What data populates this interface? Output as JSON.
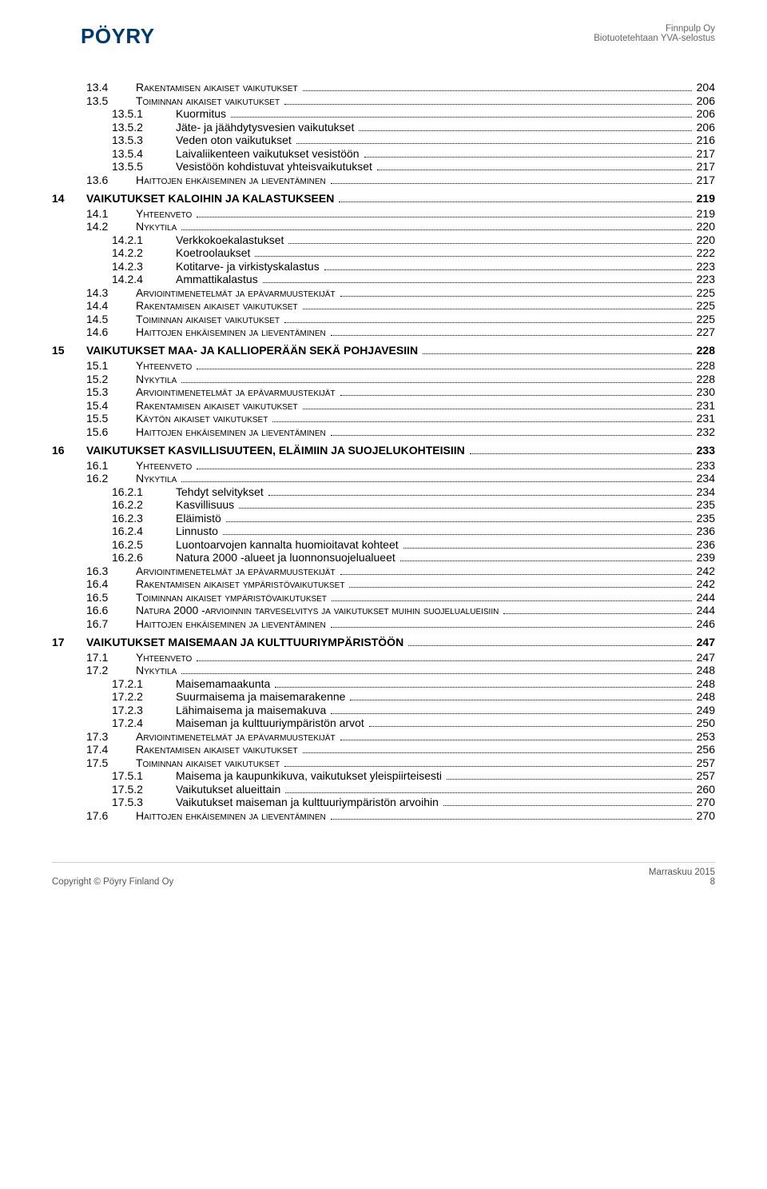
{
  "header": {
    "logo_text": "PÖYRY",
    "logo_colors": {
      "outer": "#e26b1a",
      "inner": "#0b5fa5"
    },
    "client": "Finnpulp Oy",
    "subtitle": "Biotuotetehtaan YVA-selostus"
  },
  "footer": {
    "copyright": "Copyright © Pöyry Finland Oy",
    "date": "Marraskuu 2015",
    "page": "8"
  },
  "entries": [
    {
      "lvl": 2,
      "num": "13.4",
      "txt": "Rakentamisen aikaiset vaikutukset",
      "pg": "204"
    },
    {
      "lvl": 2,
      "num": "13.5",
      "txt": "Toiminnan aikaiset vaikutukset",
      "pg": "206"
    },
    {
      "lvl": 3,
      "num": "13.5.1",
      "txt": "Kuormitus",
      "pg": "206"
    },
    {
      "lvl": 3,
      "num": "13.5.2",
      "txt": "Jäte- ja jäähdytysvesien vaikutukset",
      "pg": "206"
    },
    {
      "lvl": 3,
      "num": "13.5.3",
      "txt": "Veden oton vaikutukset",
      "pg": "216"
    },
    {
      "lvl": 3,
      "num": "13.5.4",
      "txt": "Laivaliikenteen vaikutukset vesistöön",
      "pg": "217"
    },
    {
      "lvl": 3,
      "num": "13.5.5",
      "txt": "Vesistöön kohdistuvat yhteisvaikutukset",
      "pg": "217"
    },
    {
      "lvl": 2,
      "num": "13.6",
      "txt": "Haittojen ehkäiseminen ja lieventäminen",
      "pg": "217"
    },
    {
      "lvl": 1,
      "num": "14",
      "txt": "VAIKUTUKSET KALOIHIN JA KALASTUKSEEN",
      "pg": "219"
    },
    {
      "lvl": 2,
      "num": "14.1",
      "txt": "Yhteenveto",
      "pg": "219"
    },
    {
      "lvl": 2,
      "num": "14.2",
      "txt": "Nykytila",
      "pg": "220"
    },
    {
      "lvl": 3,
      "num": "14.2.1",
      "txt": "Verkkokoekalastukset",
      "pg": "220"
    },
    {
      "lvl": 3,
      "num": "14.2.2",
      "txt": "Koetroolaukset",
      "pg": "222"
    },
    {
      "lvl": 3,
      "num": "14.2.3",
      "txt": "Kotitarve- ja virkistyskalastus",
      "pg": "223"
    },
    {
      "lvl": 3,
      "num": "14.2.4",
      "txt": "Ammattikalastus",
      "pg": "223"
    },
    {
      "lvl": 2,
      "num": "14.3",
      "txt": "Arviointimenetelmät ja epävarmuustekijät",
      "pg": "225"
    },
    {
      "lvl": 2,
      "num": "14.4",
      "txt": "Rakentamisen aikaiset vaikutukset",
      "pg": "225"
    },
    {
      "lvl": 2,
      "num": "14.5",
      "txt": "Toiminnan aikaiset vaikutukset",
      "pg": "225"
    },
    {
      "lvl": 2,
      "num": "14.6",
      "txt": "Haittojen ehkäiseminen ja lieventäminen",
      "pg": "227"
    },
    {
      "lvl": 1,
      "num": "15",
      "txt": "VAIKUTUKSET MAA- JA KALLIOPERÄÄN SEKÄ POHJAVESIIN",
      "pg": "228"
    },
    {
      "lvl": 2,
      "num": "15.1",
      "txt": "Yhteenveto",
      "pg": "228"
    },
    {
      "lvl": 2,
      "num": "15.2",
      "txt": "Nykytila",
      "pg": "228"
    },
    {
      "lvl": 2,
      "num": "15.3",
      "txt": "Arviointimenetelmät ja epävarmuustekijät",
      "pg": "230"
    },
    {
      "lvl": 2,
      "num": "15.4",
      "txt": "Rakentamisen aikaiset vaikutukset",
      "pg": "231"
    },
    {
      "lvl": 2,
      "num": "15.5",
      "txt": "Käytön aikaiset vaikutukset",
      "pg": "231"
    },
    {
      "lvl": 2,
      "num": "15.6",
      "txt": "Haittojen ehkäiseminen ja lieventäminen",
      "pg": "232"
    },
    {
      "lvl": 1,
      "num": "16",
      "txt": "VAIKUTUKSET KASVILLISUUTEEN, ELÄIMIIN JA SUOJELUKOHTEISIIN",
      "pg": "233"
    },
    {
      "lvl": 2,
      "num": "16.1",
      "txt": "Yhteenveto",
      "pg": "233"
    },
    {
      "lvl": 2,
      "num": "16.2",
      "txt": "Nykytila",
      "pg": "234"
    },
    {
      "lvl": 3,
      "num": "16.2.1",
      "txt": "Tehdyt selvitykset",
      "pg": "234"
    },
    {
      "lvl": 3,
      "num": "16.2.2",
      "txt": "Kasvillisuus",
      "pg": "235"
    },
    {
      "lvl": 3,
      "num": "16.2.3",
      "txt": "Eläimistö",
      "pg": "235"
    },
    {
      "lvl": 3,
      "num": "16.2.4",
      "txt": "Linnusto",
      "pg": "236"
    },
    {
      "lvl": 3,
      "num": "16.2.5",
      "txt": "Luontoarvojen kannalta huomioitavat kohteet",
      "pg": "236"
    },
    {
      "lvl": 3,
      "num": "16.2.6",
      "txt": "Natura 2000 -alueet ja luonnonsuojelualueet",
      "pg": "239"
    },
    {
      "lvl": 2,
      "num": "16.3",
      "txt": "Arviointimenetelmät ja epävarmuustekijät",
      "pg": "242"
    },
    {
      "lvl": 2,
      "num": "16.4",
      "txt": "Rakentamisen aikaiset ympäristövaikutukset",
      "pg": "242"
    },
    {
      "lvl": 2,
      "num": "16.5",
      "txt": "Toiminnan aikaiset ympäristövaikutukset",
      "pg": "244"
    },
    {
      "lvl": 2,
      "num": "16.6",
      "txt": "Natura 2000 -arvioinnin tarveselvitys ja vaikutukset muihin suojelualueisiin",
      "pg": "244"
    },
    {
      "lvl": 2,
      "num": "16.7",
      "txt": "Haittojen ehkäiseminen ja lieventäminen",
      "pg": "246"
    },
    {
      "lvl": 1,
      "num": "17",
      "txt": "VAIKUTUKSET MAISEMAAN JA KULTTUURIYMPÄRISTÖÖN",
      "pg": "247"
    },
    {
      "lvl": 2,
      "num": "17.1",
      "txt": "Yhteenveto",
      "pg": "247"
    },
    {
      "lvl": 2,
      "num": "17.2",
      "txt": "Nykytila",
      "pg": "248"
    },
    {
      "lvl": 3,
      "num": "17.2.1",
      "txt": "Maisemamaakunta",
      "pg": "248"
    },
    {
      "lvl": 3,
      "num": "17.2.2",
      "txt": "Suurmaisema ja maisemarakenne",
      "pg": "248"
    },
    {
      "lvl": 3,
      "num": "17.2.3",
      "txt": "Lähimaisema ja maisemakuva",
      "pg": "249"
    },
    {
      "lvl": 3,
      "num": "17.2.4",
      "txt": "Maiseman ja kulttuuriympäristön arvot",
      "pg": "250"
    },
    {
      "lvl": 2,
      "num": "17.3",
      "txt": "Arviointimenetelmät ja epävarmuustekijät",
      "pg": "253"
    },
    {
      "lvl": 2,
      "num": "17.4",
      "txt": "Rakentamisen aikaiset vaikutukset",
      "pg": "256"
    },
    {
      "lvl": 2,
      "num": "17.5",
      "txt": "Toiminnan aikaiset vaikutukset",
      "pg": "257"
    },
    {
      "lvl": 3,
      "num": "17.5.1",
      "txt": "Maisema ja kaupunkikuva, vaikutukset yleispiirteisesti",
      "pg": "257"
    },
    {
      "lvl": 3,
      "num": "17.5.2",
      "txt": "Vaikutukset alueittain",
      "pg": "260"
    },
    {
      "lvl": 3,
      "num": "17.5.3",
      "txt": "Vaikutukset maiseman ja kulttuuriympäristön arvoihin",
      "pg": "270"
    },
    {
      "lvl": 2,
      "num": "17.6",
      "txt": "Haittojen ehkäiseminen ja lieventäminen",
      "pg": "270"
    }
  ]
}
